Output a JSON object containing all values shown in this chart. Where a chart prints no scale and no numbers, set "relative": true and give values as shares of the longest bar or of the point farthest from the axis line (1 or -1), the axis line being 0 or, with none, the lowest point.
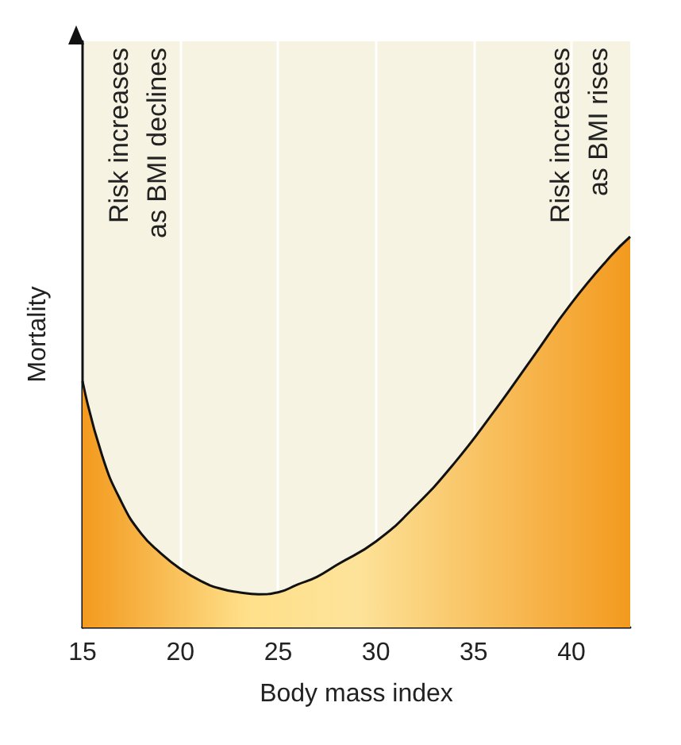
{
  "chart_data": {
    "type": "area",
    "relative": true,
    "xlabel": "Body mass index",
    "ylabel": "Mortality",
    "x": [
      15,
      16,
      17,
      18,
      19,
      20,
      21,
      22,
      23,
      24,
      25,
      26,
      27,
      28,
      30,
      32,
      34,
      36,
      38,
      40,
      42,
      43
    ],
    "values": [
      0.63,
      0.44,
      0.32,
      0.24,
      0.19,
      0.15,
      0.12,
      0.1,
      0.09,
      0.085,
      0.09,
      0.11,
      0.13,
      0.16,
      0.22,
      0.31,
      0.42,
      0.55,
      0.69,
      0.83,
      0.95,
      1
    ],
    "color": "#f39a1e",
    "xlim": [
      15,
      43
    ],
    "xticks": [
      15,
      20,
      25,
      30,
      35,
      40
    ],
    "grid": "x",
    "annotations": [
      "Risk increases\nas BMI declines",
      "Risk increases\nas BMI rises"
    ]
  }
}
